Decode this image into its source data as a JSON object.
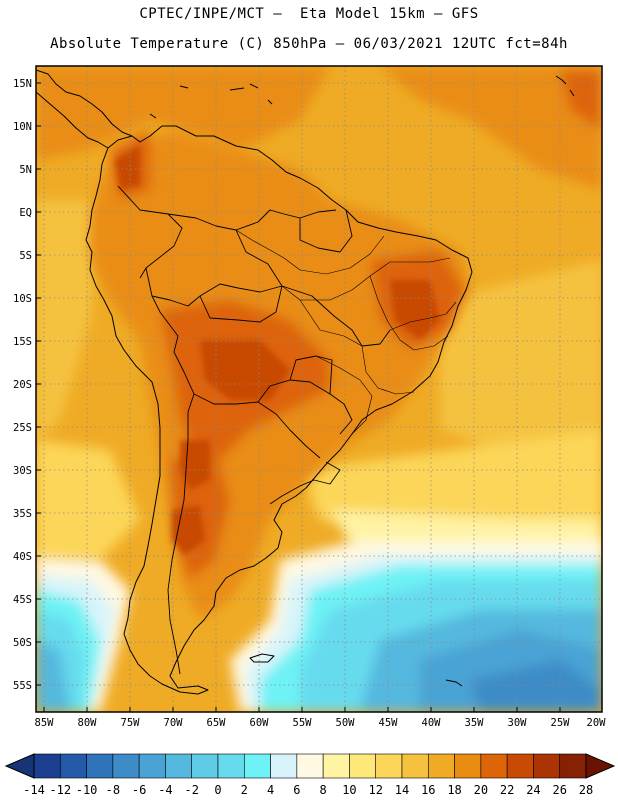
{
  "header": {
    "line1": "CPTEC/INPE/MCT –  Eta Model 15km – GFS",
    "line2": "Absolute Temperature (C) 850hPa – 06/03/2021 12UTC fct=84h"
  },
  "map": {
    "lat_labels": [
      "15N",
      "10N",
      "5N",
      "EQ",
      "5S",
      "10S",
      "15S",
      "20S",
      "25S",
      "30S",
      "35S",
      "40S",
      "45S",
      "50S",
      "55S"
    ],
    "lon_labels": [
      "85W",
      "80W",
      "75W",
      "70W",
      "65W",
      "60W",
      "55W",
      "50W",
      "45W",
      "40W",
      "35W",
      "30W",
      "25W",
      "20W"
    ],
    "grid": "dotted"
  },
  "colorbar": {
    "labels": [
      "-14",
      "-12",
      "-10",
      "-8",
      "-6",
      "-4",
      "-2",
      "0",
      "2",
      "4",
      "6",
      "8",
      "10",
      "12",
      "14",
      "16",
      "18",
      "20",
      "22",
      "24",
      "26",
      "28"
    ],
    "colors": [
      "#1c3f8f",
      "#245aa8",
      "#2f74b8",
      "#3d8cc8",
      "#4aa3d4",
      "#55b8de",
      "#5fcbe6",
      "#66dbee",
      "#6ef2f5",
      "#d8f4fa",
      "#fff8e2",
      "#fff3a4",
      "#ffe87a",
      "#fcd659",
      "#f5c23f",
      "#efab25",
      "#e98d12",
      "#dd6407",
      "#c84a05",
      "#ab3404",
      "#862103"
    ],
    "left_arrow_color": "#173477",
    "right_arrow_color": "#6b1303"
  }
}
